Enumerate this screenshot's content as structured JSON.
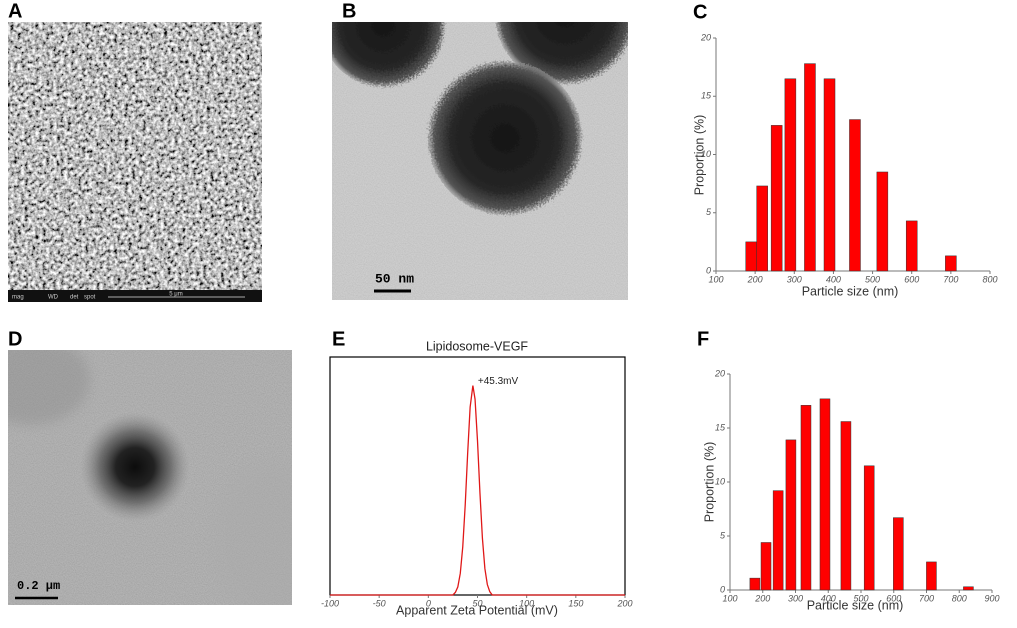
{
  "panels": {
    "labels": [
      "A",
      "B",
      "C",
      "D",
      "E",
      "F"
    ]
  },
  "micrographs": {
    "a": {
      "info": [
        "mag",
        "WD",
        "det",
        "spot"
      ],
      "scale": "5 μm"
    },
    "b": {
      "scale": "50 nm"
    },
    "d": {
      "scale": "0.2 μm"
    }
  },
  "chart_data": [
    {
      "type": "bar",
      "ylabel": "Proportion (%)",
      "xlabel": "Particle size  (nm)",
      "x": [
        190,
        218,
        255,
        290,
        340,
        390,
        455,
        525,
        600,
        700
      ],
      "values": [
        2.5,
        7.3,
        12.5,
        16.5,
        17.8,
        16.5,
        13.0,
        8.5,
        4.3,
        1.3
      ],
      "color": "#ff0000",
      "xlim": [
        100,
        800
      ],
      "xticks": [
        100,
        200,
        300,
        400,
        500,
        600,
        700,
        800
      ],
      "ylim": [
        0,
        20
      ],
      "yticks": [
        0,
        5,
        10,
        15,
        20
      ]
    },
    {
      "type": "line",
      "title": "Lipidosome-VEGF",
      "xlabel": "Apparent Zeta Potential (mV)",
      "x": [
        -100,
        25,
        27.5,
        30,
        32.5,
        35,
        37.5,
        40,
        42.5,
        45.3,
        47.5,
        50,
        52.5,
        55,
        57.5,
        60,
        62.5,
        65,
        200
      ],
      "values": [
        0,
        0,
        1.1,
        3.4,
        9.1,
        20.2,
        37.8,
        59.6,
        78.9,
        88,
        82.3,
        64.8,
        42.8,
        23.8,
        11.1,
        4.4,
        1.4,
        0,
        0
      ],
      "color": "#e01818",
      "annotation": "+45.3mV",
      "xlim": [
        -100,
        200
      ],
      "xticks": [
        -100,
        -50,
        0,
        50,
        100,
        150,
        200
      ],
      "ylim": [
        0,
        100
      ]
    },
    {
      "type": "bar",
      "ylabel": "Proportion (%)",
      "xlabel": "Particle size  (nm)",
      "x": [
        176,
        210,
        247,
        286,
        332,
        390,
        454,
        525,
        614,
        715,
        828
      ],
      "values": [
        1.1,
        4.4,
        9.2,
        13.9,
        17.1,
        17.7,
        15.6,
        11.5,
        6.7,
        2.6,
        0.3
      ],
      "color": "#ff0000",
      "xlim": [
        100,
        900
      ],
      "xticks": [
        100,
        200,
        300,
        400,
        500,
        600,
        700,
        800,
        900
      ],
      "ylim": [
        0,
        20
      ],
      "yticks": [
        0,
        5,
        10,
        15,
        20
      ]
    }
  ]
}
